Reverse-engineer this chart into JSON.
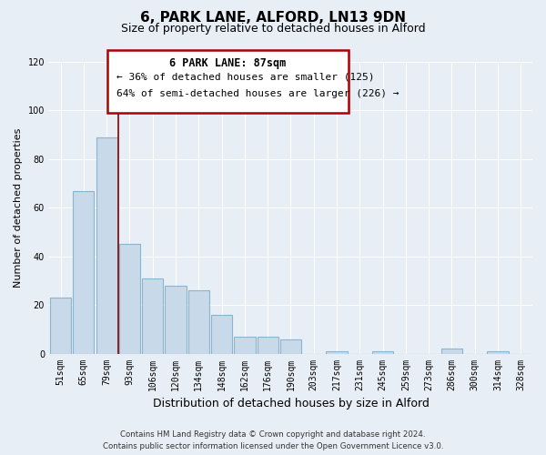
{
  "title": "6, PARK LANE, ALFORD, LN13 9DN",
  "subtitle": "Size of property relative to detached houses in Alford",
  "xlabel": "Distribution of detached houses by size in Alford",
  "ylabel": "Number of detached properties",
  "categories": [
    "51sqm",
    "65sqm",
    "79sqm",
    "93sqm",
    "106sqm",
    "120sqm",
    "134sqm",
    "148sqm",
    "162sqm",
    "176sqm",
    "190sqm",
    "203sqm",
    "217sqm",
    "231sqm",
    "245sqm",
    "259sqm",
    "273sqm",
    "286sqm",
    "300sqm",
    "314sqm",
    "328sqm"
  ],
  "values": [
    23,
    67,
    89,
    45,
    31,
    28,
    26,
    16,
    7,
    7,
    6,
    0,
    1,
    0,
    1,
    0,
    0,
    2,
    0,
    1,
    0
  ],
  "bar_color": "#c8daea",
  "bar_edge_color": "#8ab4d0",
  "marker_line_color": "#8b0000",
  "ylim": [
    0,
    120
  ],
  "yticks": [
    0,
    20,
    40,
    60,
    80,
    100,
    120
  ],
  "annotation_title": "6 PARK LANE: 87sqm",
  "annotation_line1": "← 36% of detached houses are smaller (125)",
  "annotation_line2": "64% of semi-detached houses are larger (226) →",
  "annotation_box_color": "#aa0000",
  "footer_line1": "Contains HM Land Registry data © Crown copyright and database right 2024.",
  "footer_line2": "Contains public sector information licensed under the Open Government Licence v3.0.",
  "background_color": "#e8eef5",
  "plot_background": "#e8eef5",
  "grid_color": "#ffffff",
  "title_fontsize": 11,
  "subtitle_fontsize": 9
}
